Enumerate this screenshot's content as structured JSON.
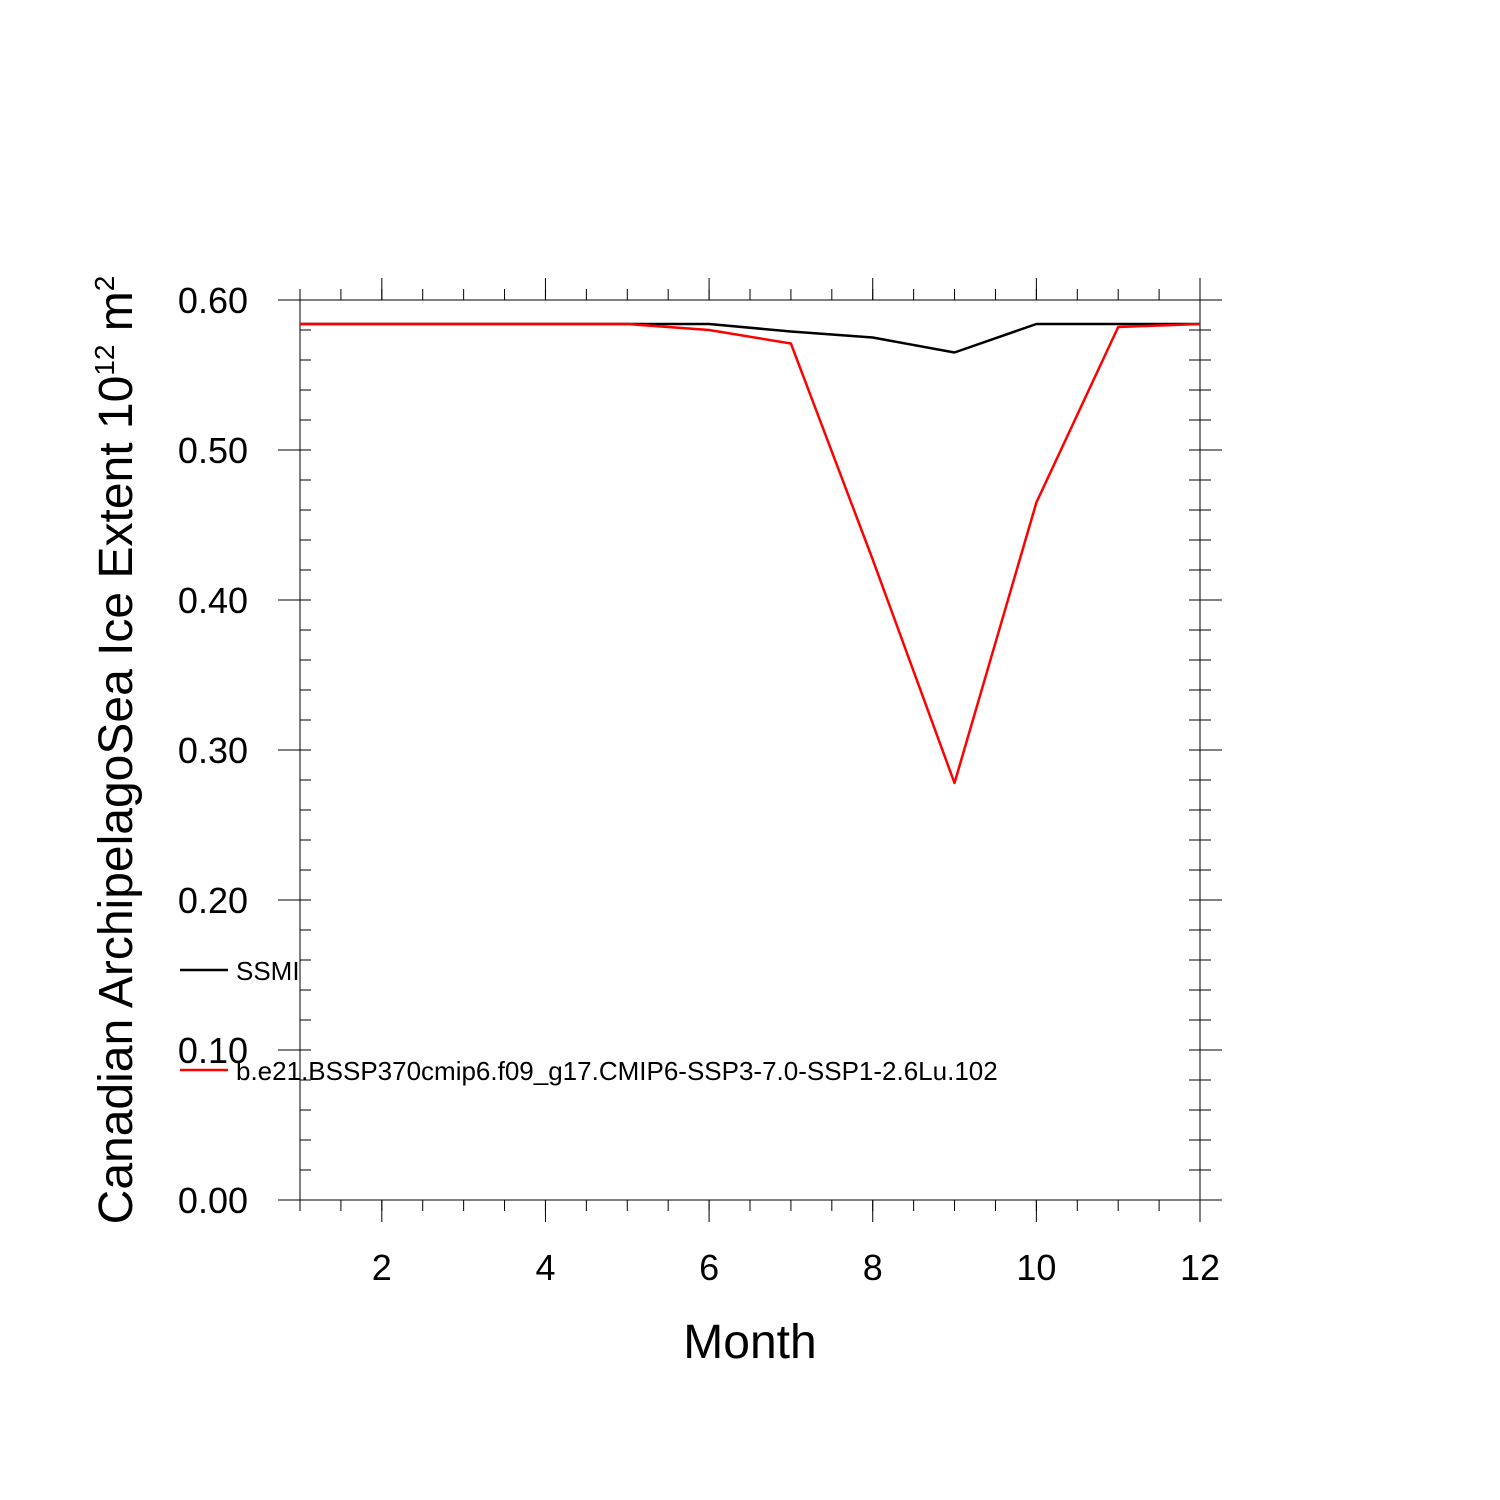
{
  "chart_data": {
    "type": "line",
    "title": "",
    "xlabel": "Month",
    "ylabel": "Canadian ArchipelagoSea Ice Extent 10",
    "ylabel_exp": "12",
    "ylabel_unit": " m",
    "ylabel_unit_exp": "2",
    "xlim": [
      1,
      12
    ],
    "ylim": [
      0,
      0.6
    ],
    "xticks": [
      2,
      4,
      6,
      8,
      10,
      12
    ],
    "xtick_labels": [
      "2",
      "4",
      "6",
      "8",
      "10",
      "12"
    ],
    "yticks": [
      0,
      0.1,
      0.2,
      0.3,
      0.4,
      0.5,
      0.6
    ],
    "ytick_labels": [
      "0.00",
      "0.10",
      "0.20",
      "0.30",
      "0.40",
      "0.50",
      "0.60"
    ],
    "grid": false,
    "legend_position": "left, inside lower plot area",
    "x": [
      1,
      2,
      3,
      4,
      5,
      6,
      7,
      8,
      9,
      10,
      11,
      12
    ],
    "series": [
      {
        "name": "SSMI",
        "color": "#000000",
        "values": [
          0.584,
          0.584,
          0.584,
          0.584,
          0.584,
          0.584,
          0.579,
          0.575,
          0.565,
          0.584,
          0.584,
          0.584
        ]
      },
      {
        "name": "b.e21.BSSP370cmip6.f09_g17.CMIP6-SSP3-7.0-SSP1-2.6Lu.102",
        "color": "#ff0000",
        "values": [
          0.584,
          0.584,
          0.584,
          0.584,
          0.584,
          0.58,
          0.571,
          0.427,
          0.278,
          0.465,
          0.582,
          0.584
        ]
      }
    ]
  }
}
